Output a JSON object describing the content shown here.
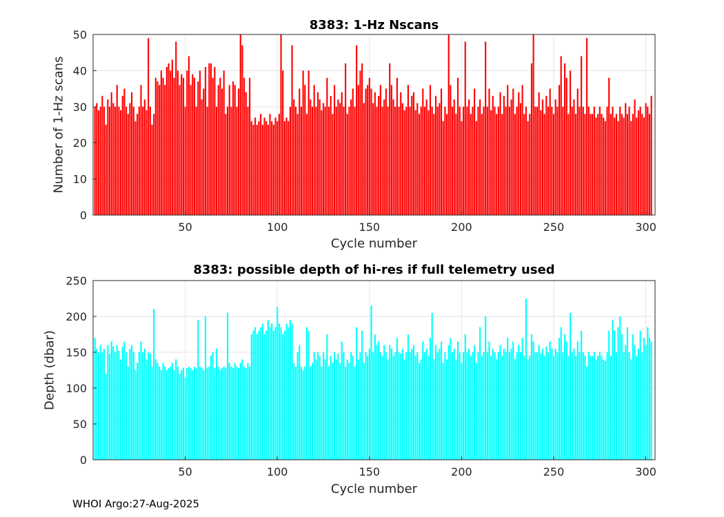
{
  "figure": {
    "footer_credit": "WHOI Argo:27-Aug-2025"
  },
  "chart_data": [
    {
      "type": "bar",
      "title": "8383: 1-Hz Nscans",
      "xlabel": "Cycle number",
      "ylabel": "Number of 1-Hz scans",
      "bar_color": "#FF0000",
      "grid": true,
      "legend": "none",
      "x_start": 1,
      "xlim": [
        0,
        305
      ],
      "ylim": [
        0,
        50
      ],
      "xticks": [
        50,
        100,
        150,
        200,
        250,
        300
      ],
      "yticks": [
        0,
        10,
        20,
        30,
        40,
        50
      ],
      "values": [
        30,
        31,
        29,
        30,
        33,
        30,
        25,
        32,
        30,
        34,
        31,
        30,
        36,
        30,
        29,
        33,
        35,
        30,
        28,
        31,
        34,
        30,
        26,
        28,
        30,
        36,
        30,
        32,
        29,
        49,
        30,
        25,
        28,
        38,
        37,
        36,
        40,
        38,
        36,
        41,
        42,
        40,
        43,
        38,
        48,
        40,
        36,
        39,
        38,
        30,
        40,
        44,
        36,
        39,
        38,
        30,
        37,
        40,
        32,
        35,
        41,
        30,
        42,
        42,
        38,
        41,
        30,
        36,
        38,
        35,
        40,
        28,
        30,
        36,
        30,
        37,
        36,
        30,
        35,
        50,
        47,
        38,
        34,
        30,
        38,
        26,
        25,
        27,
        25,
        26,
        28,
        25,
        27,
        26,
        25,
        28,
        26,
        25,
        27,
        26,
        28,
        50,
        40,
        26,
        27,
        26,
        30,
        47,
        32,
        30,
        28,
        35,
        30,
        40,
        36,
        28,
        40,
        32,
        30,
        36,
        30,
        34,
        32,
        29,
        31,
        30,
        38,
        30,
        33,
        28,
        36,
        30,
        32,
        31,
        34,
        30,
        42,
        28,
        30,
        32,
        35,
        30,
        47,
        36,
        40,
        42,
        31,
        35,
        36,
        38,
        35,
        31,
        34,
        30,
        33,
        36,
        30,
        32,
        35,
        30,
        42,
        36,
        32,
        30,
        38,
        30,
        34,
        31,
        29,
        30,
        36,
        30,
        33,
        34,
        29,
        31,
        28,
        30,
        35,
        30,
        32,
        29,
        36,
        30,
        28,
        33,
        30,
        31,
        35,
        26,
        30,
        28,
        50,
        36,
        30,
        32,
        28,
        38,
        30,
        26,
        30,
        48,
        30,
        32,
        28,
        30,
        35,
        26,
        30,
        32,
        28,
        30,
        48,
        30,
        35,
        29,
        33,
        30,
        28,
        30,
        34,
        28,
        33,
        30,
        36,
        30,
        32,
        35,
        28,
        30,
        34,
        31,
        36,
        28,
        30,
        26,
        28,
        42,
        50,
        30,
        30,
        34,
        29,
        32,
        28,
        33,
        30,
        35,
        30,
        28,
        32,
        30,
        36,
        44,
        30,
        42,
        38,
        28,
        40,
        30,
        32,
        28,
        35,
        30,
        44,
        30,
        28,
        49,
        30,
        28,
        28,
        30,
        27,
        28,
        30,
        28,
        27,
        26,
        30,
        38,
        28,
        30,
        27,
        28,
        26,
        30,
        28,
        27,
        31,
        28,
        30,
        26,
        28,
        32,
        27,
        29,
        30,
        28,
        27,
        31,
        30,
        28,
        33
      ]
    },
    {
      "type": "bar",
      "title": "8383: possible depth of hi-res if full telemetry used",
      "xlabel": "Cycle number",
      "ylabel": "Depth (dbar)",
      "bar_color": "#00FFFF",
      "grid": true,
      "legend": "none",
      "x_start": 1,
      "xlim": [
        0,
        305
      ],
      "ylim": [
        0,
        250
      ],
      "xticks": [
        50,
        100,
        150,
        200,
        250,
        300
      ],
      "yticks": [
        0,
        50,
        100,
        150,
        200,
        250
      ],
      "values": [
        170,
        155,
        150,
        160,
        150,
        155,
        120,
        160,
        148,
        165,
        158,
        150,
        160,
        152,
        140,
        158,
        165,
        150,
        130,
        155,
        160,
        150,
        125,
        135,
        150,
        165,
        150,
        155,
        140,
        150,
        148,
        130,
        210,
        140,
        135,
        130,
        125,
        135,
        130,
        125,
        128,
        130,
        135,
        125,
        140,
        130,
        120,
        125,
        128,
        115,
        128,
        130,
        128,
        125,
        130,
        128,
        195,
        130,
        128,
        125,
        200,
        128,
        130,
        145,
        150,
        128,
        155,
        130,
        125,
        128,
        130,
        128,
        205,
        135,
        130,
        128,
        135,
        130,
        128,
        135,
        140,
        130,
        128,
        135,
        130,
        175,
        180,
        185,
        175,
        180,
        185,
        190,
        175,
        180,
        195,
        185,
        190,
        180,
        185,
        213,
        190,
        185,
        175,
        180,
        190,
        185,
        195,
        190,
        135,
        130,
        150,
        160,
        130,
        125,
        130,
        185,
        180,
        130,
        135,
        150,
        140,
        150,
        145,
        130,
        150,
        140,
        175,
        130,
        145,
        135,
        150,
        140,
        148,
        135,
        165,
        150,
        130,
        140,
        135,
        150,
        145,
        130,
        185,
        140,
        150,
        180,
        135,
        150,
        145,
        155,
        215,
        150,
        175,
        160,
        165,
        150,
        145,
        160,
        150,
        140,
        160,
        155,
        145,
        150,
        170,
        150,
        148,
        155,
        140,
        150,
        175,
        150,
        155,
        160,
        145,
        150,
        135,
        140,
        165,
        150,
        155,
        145,
        170,
        205,
        140,
        160,
        150,
        155,
        165,
        135,
        150,
        140,
        160,
        170,
        150,
        155,
        140,
        165,
        150,
        135,
        150,
        175,
        150,
        155,
        145,
        150,
        160,
        135,
        150,
        185,
        145,
        150,
        200,
        150,
        165,
        145,
        155,
        150,
        140,
        150,
        160,
        145,
        155,
        150,
        170,
        150,
        155,
        165,
        140,
        150,
        160,
        150,
        170,
        145,
        225,
        140,
        145,
        175,
        165,
        150,
        150,
        160,
        148,
        155,
        145,
        158,
        150,
        165,
        155,
        145,
        155,
        150,
        170,
        185,
        150,
        175,
        165,
        145,
        205,
        150,
        155,
        145,
        165,
        150,
        180,
        150,
        145,
        130,
        150,
        145,
        145,
        150,
        140,
        145,
        150,
        145,
        140,
        138,
        150,
        180,
        145,
        195,
        180,
        150,
        185,
        200,
        175,
        150,
        160,
        185,
        150,
        140,
        175,
        160,
        145,
        155,
        180,
        150,
        170,
        160,
        185,
        170,
        165
      ]
    }
  ]
}
